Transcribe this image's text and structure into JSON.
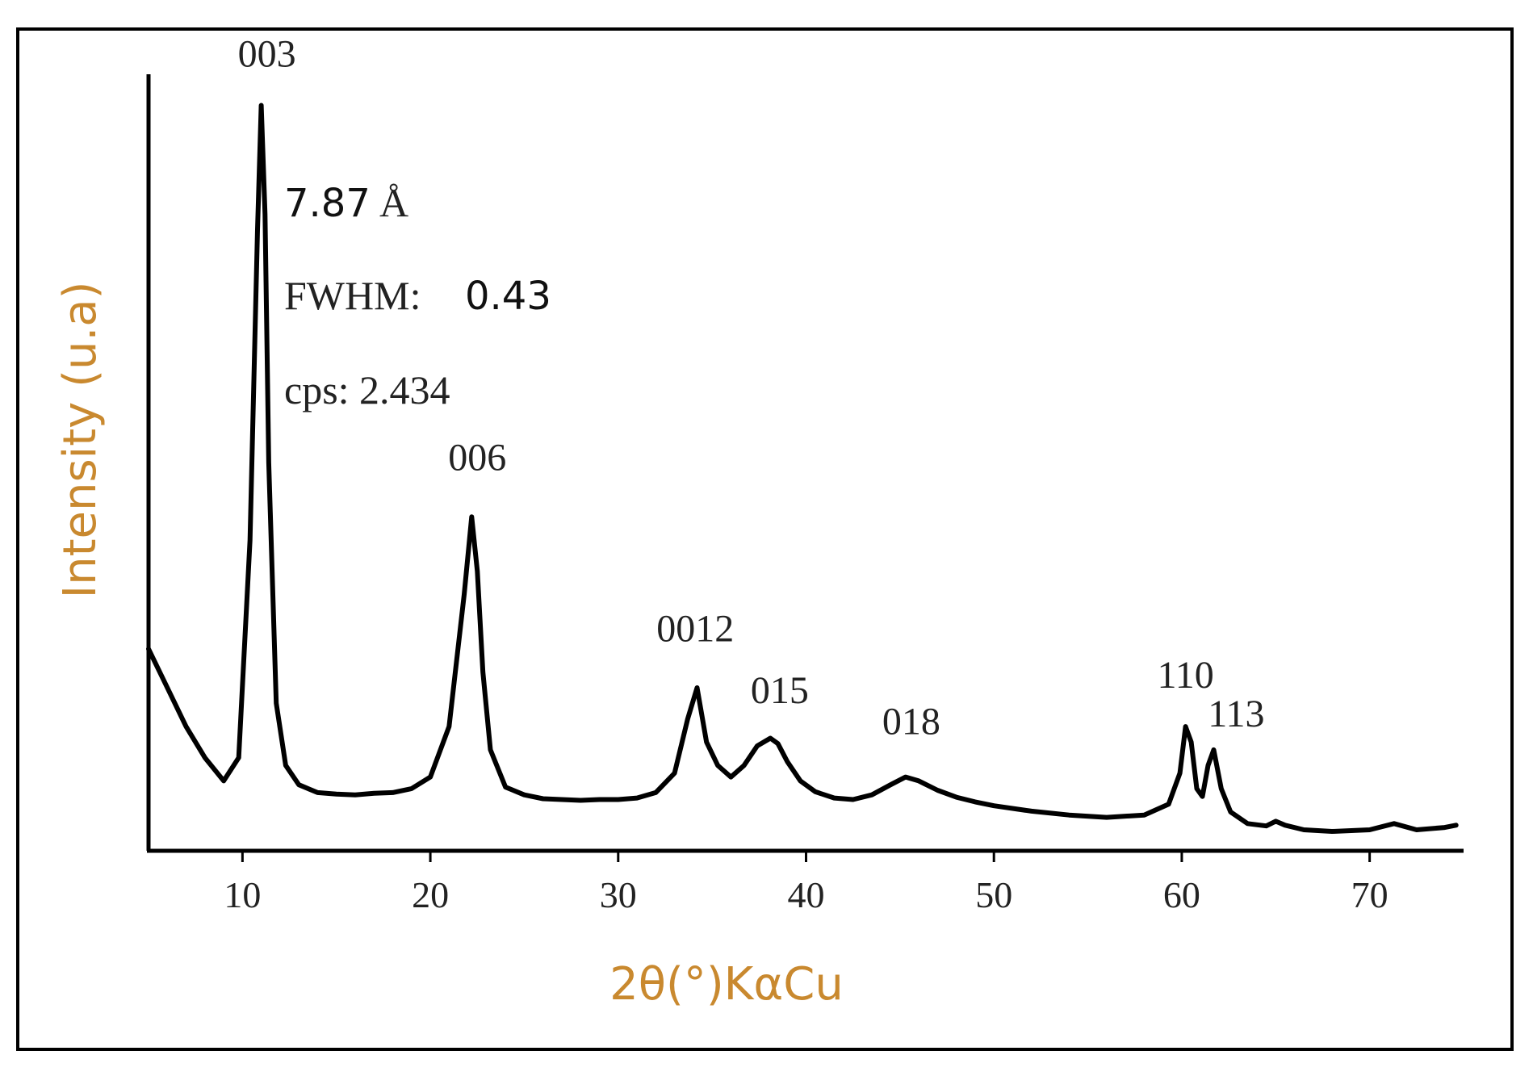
{
  "chart_data": {
    "type": "line",
    "xlabel": "2θ(°)KαCu",
    "ylabel": "Intensity (u.a)",
    "xlim": [
      5,
      75
    ],
    "ylim": [
      0,
      100
    ],
    "x_ticks": [
      10,
      20,
      30,
      40,
      50,
      60,
      70
    ],
    "colors": {
      "axis_title": "#c9892f",
      "line": "#000000",
      "text": "#222222"
    },
    "series": [
      {
        "x": [
          5,
          6,
          7,
          8,
          9,
          9.8,
          10.4,
          10.8,
          11.0,
          11.2,
          11.4,
          11.8,
          12.3,
          13,
          14,
          15,
          16,
          17,
          18,
          19,
          20,
          21,
          21.8,
          22.2,
          22.5,
          22.8,
          23.2,
          24,
          25,
          26,
          27,
          28,
          29,
          30,
          31,
          32,
          33,
          33.7,
          34.2,
          34.7,
          35.3,
          36,
          36.7,
          37.4,
          38.1,
          38.5,
          39,
          39.7,
          40.5,
          41.5,
          42.5,
          43.5,
          44.5,
          45.3,
          46,
          47,
          48,
          49,
          50,
          52,
          54,
          56,
          58,
          59.3,
          59.9,
          60.2,
          60.5,
          60.8,
          61.1,
          61.4,
          61.7,
          62.1,
          62.6,
          63.5,
          64.5,
          65.0,
          65.5,
          66.5,
          68,
          70,
          71.3,
          72.5,
          74,
          74.6
        ],
        "y": [
          26,
          21,
          16,
          12,
          9,
          12,
          40,
          80,
          96,
          82,
          50,
          19,
          11,
          8.5,
          7.5,
          7.3,
          7.2,
          7.4,
          7.5,
          8.0,
          9.5,
          16,
          33,
          43,
          36,
          23,
          13,
          8.2,
          7.2,
          6.7,
          6.6,
          6.5,
          6.6,
          6.6,
          6.8,
          7.5,
          10,
          17,
          21,
          14,
          11,
          9.5,
          11,
          13.5,
          14.5,
          13.8,
          11.5,
          9.0,
          7.6,
          6.8,
          6.6,
          7.2,
          8.5,
          9.5,
          9.0,
          7.8,
          6.9,
          6.3,
          5.8,
          5.1,
          4.6,
          4.3,
          4.6,
          6,
          10,
          16,
          14,
          8,
          7,
          11,
          13,
          8,
          5,
          3.5,
          3.2,
          3.8,
          3.3,
          2.7,
          2.5,
          2.7,
          3.5,
          2.7,
          3.0,
          3.3
        ]
      }
    ],
    "peak_labels": [
      {
        "text": "003",
        "x": 11.3,
        "y": 101
      },
      {
        "text": "006",
        "x": 22.5,
        "y": 49
      },
      {
        "text": "0012",
        "x": 34.1,
        "y": 27
      },
      {
        "text": "015",
        "x": 38.6,
        "y": 19
      },
      {
        "text": "018",
        "x": 45.6,
        "y": 15
      },
      {
        "text": "110",
        "x": 60.2,
        "y": 21
      },
      {
        "text": "113",
        "x": 62.9,
        "y": 16
      }
    ],
    "annotations": {
      "d_spacing": "7.87",
      "angstrom": "Å",
      "fwhm_label": "FWHM:",
      "fwhm_value": "0.43",
      "cps": "cps: 2.434"
    }
  }
}
